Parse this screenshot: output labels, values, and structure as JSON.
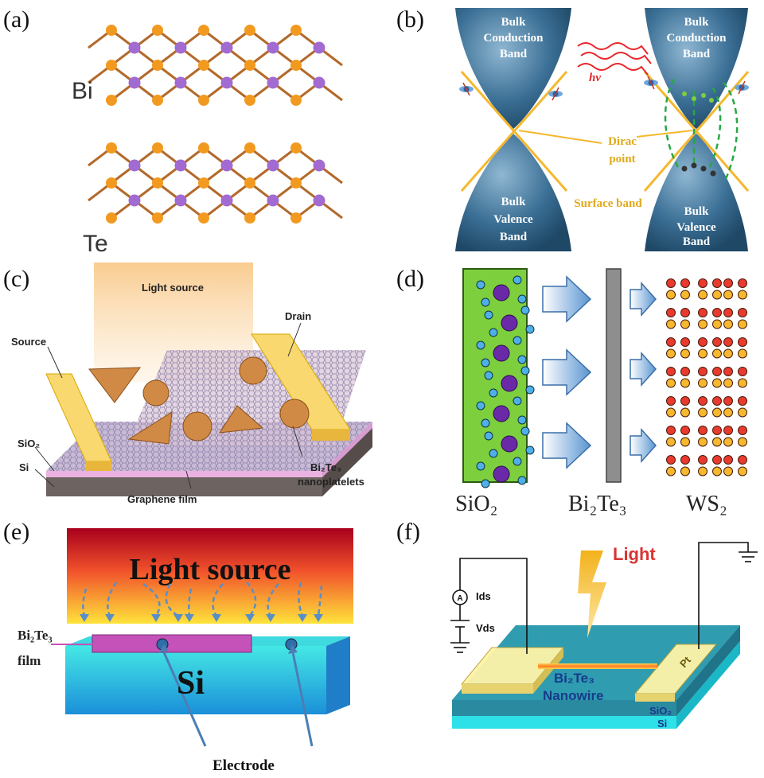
{
  "panels": {
    "a": {
      "label": "(a)",
      "bi": "Bi",
      "te": "Te"
    },
    "b": {
      "label": "(b)",
      "cb": [
        "Bulk",
        "Conduction",
        "Band"
      ],
      "vb": [
        "Bulk",
        "Valence",
        "Band"
      ],
      "hv": "hv",
      "dirac": [
        "Dirac",
        "point"
      ],
      "surface": "Surface band"
    },
    "c": {
      "label": "(c)",
      "light": "Light source",
      "source": "Source",
      "drain": "Drain",
      "sio2": "SiO₂",
      "si": "Si",
      "graphene": "Graphene film",
      "bite": "Bi₂Te₃",
      "nano": "nanoplatelets"
    },
    "d": {
      "label": "(d)",
      "sio2": "SiO₂",
      "bite": "Bi₂Te₃",
      "ws2": "WS₂"
    },
    "e": {
      "label": "(e)",
      "light": "Light source",
      "bite": "Bi₂Te₃",
      "film": "film",
      "si": "Si",
      "electrode": "Electrode"
    },
    "f": {
      "label": "(f)",
      "light": "Light",
      "ids": "Ids",
      "vds": "Vds",
      "a": "A",
      "pt": "Pt",
      "bite": "Bi₂Te₃",
      "nanowire": "Nanowire",
      "sio2": "SiO₂",
      "si": "Si"
    }
  },
  "colors": {
    "orange": "#f29a1f",
    "purple": "#a26bd1",
    "band": "#3b6f95",
    "gold": "#f5b82e",
    "green": "#7dcf3e"
  }
}
